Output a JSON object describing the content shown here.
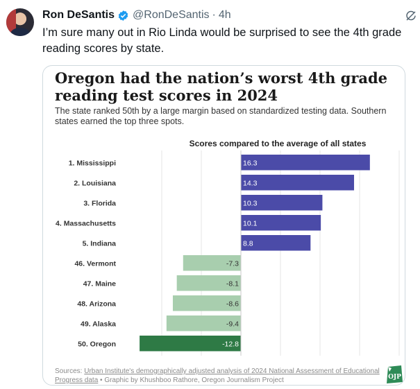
{
  "tweet": {
    "author_name": "Ron DeSantis",
    "handle": "@RonDeSantis",
    "separator": "·",
    "time": "4h",
    "text": "I’m sure many out in Rio Linda would be surprised to see the 4th grade reading scores by state."
  },
  "card": {
    "headline": "Oregon had the nation’s worst 4th grade reading test scores in 2024",
    "subtext": "The state ranked 50th by a large margin based on standardized testing data. Southern states earned the top three spots.",
    "source_prefix": "Sources: ",
    "source_link": "Urban Institute's demographically adjusted analysis of 2024 National Assessment of Educational Progress data",
    "source_suffix": " • Graphic by Khushboo Rathore, Oregon Journalism Project",
    "logo_text": "OJP"
  },
  "chart_data": {
    "type": "bar",
    "orientation": "horizontal",
    "title": "Scores compared to the average of all states",
    "categories": [
      "1. Mississippi",
      "2. Louisiana",
      "3. Florida",
      "4. Massachusetts",
      "5. Indiana",
      "46. Vermont",
      "47. Maine",
      "48. Arizona",
      "49. Alaska",
      "50. Oregon"
    ],
    "values": [
      16.3,
      14.3,
      10.3,
      10.1,
      8.8,
      -7.3,
      -8.1,
      -8.6,
      -9.4,
      -12.8
    ],
    "labels": [
      "16.3",
      "14.3",
      "10.3",
      "10.1",
      "8.8",
      "-7.3",
      "-8.1",
      "-8.6",
      "-9.4",
      "-12.8"
    ],
    "xlim": [
      -15,
      20
    ],
    "grid": true,
    "colors": {
      "positive": "#4b4ba8",
      "negative": "#a8ceae",
      "worst": "#2e7a45"
    }
  },
  "colors": {
    "verified": "#1d9bf0",
    "logo": "#2e8b57"
  },
  "icons": {
    "verified": "verified-badge-icon",
    "grok": "grok-icon",
    "logo": "ojp-logo-icon"
  }
}
